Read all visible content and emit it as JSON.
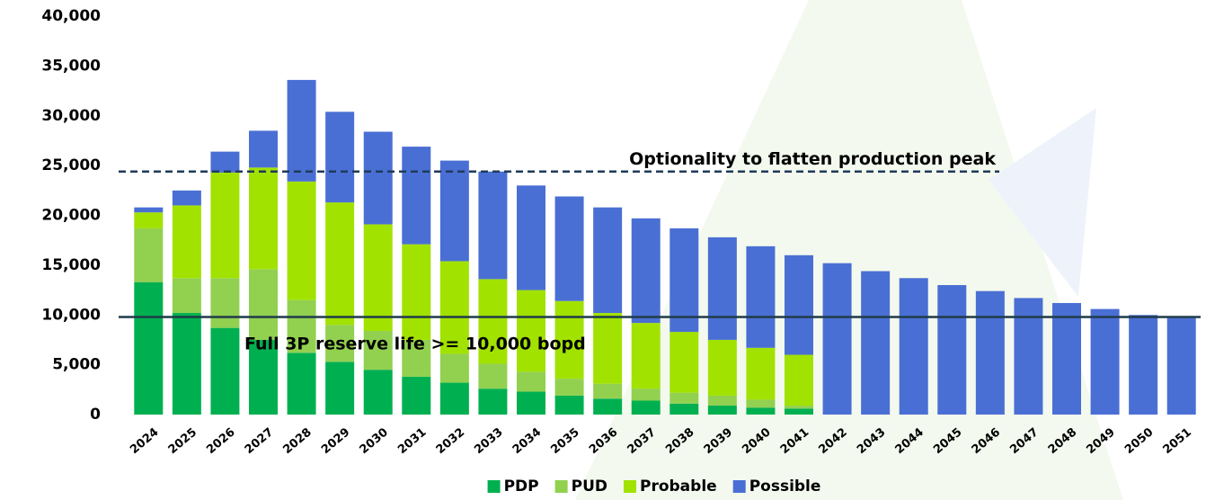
{
  "chart_data": {
    "type": "stacked_bar",
    "categories": [
      "2024",
      "2025",
      "2026",
      "2027",
      "2028",
      "2029",
      "2030",
      "2031",
      "2032",
      "2033",
      "2034",
      "2035",
      "2036",
      "2037",
      "2038",
      "2039",
      "2040",
      "2041",
      "2042",
      "2043",
      "2044",
      "2045",
      "2046",
      "2047",
      "2048",
      "2049",
      "2050",
      "2051"
    ],
    "series": [
      {
        "name": "PDP",
        "color": "#00b050",
        "values": [
          13300,
          10200,
          8700,
          7500,
          6200,
          5300,
          4500,
          3800,
          3200,
          2600,
          2300,
          1900,
          1600,
          1400,
          1100,
          900,
          700,
          600,
          0,
          0,
          0,
          0,
          0,
          0,
          0,
          0,
          0,
          0
        ]
      },
      {
        "name": "PUD",
        "color": "#92d050",
        "values": [
          5400,
          3500,
          5000,
          7100,
          5300,
          3700,
          3900,
          3700,
          2900,
          2500,
          2000,
          1700,
          1500,
          1200,
          1100,
          1000,
          800,
          300,
          0,
          0,
          0,
          0,
          0,
          0,
          0,
          0,
          0,
          0
        ]
      },
      {
        "name": "Probable",
        "color": "#a2e200",
        "values": [
          1600,
          7300,
          10600,
          10200,
          11900,
          12300,
          10700,
          9600,
          9300,
          8500,
          8200,
          7800,
          7100,
          6600,
          6100,
          5600,
          5200,
          5100,
          0,
          0,
          0,
          0,
          0,
          0,
          0,
          0,
          0,
          0
        ]
      },
      {
        "name": "Possible",
        "color": "#4a6fd4",
        "values": [
          500,
          1500,
          2100,
          3700,
          10200,
          9100,
          9300,
          9800,
          10100,
          10800,
          10500,
          10500,
          10600,
          10500,
          10400,
          10300,
          10200,
          10000,
          15200,
          14400,
          13700,
          13000,
          12400,
          11700,
          11200,
          10600,
          10000,
          9700
        ]
      }
    ],
    "ylim": [
      0,
      40000
    ],
    "yticks": [
      {
        "value": 0,
        "label": "0"
      },
      {
        "value": 5000,
        "label": "5,000"
      },
      {
        "value": 10000,
        "label": "10,000"
      },
      {
        "value": 15000,
        "label": "15,000"
      },
      {
        "value": 20000,
        "label": "20,000"
      },
      {
        "value": 25000,
        "label": "25,000"
      },
      {
        "value": 30000,
        "label": "30,000"
      },
      {
        "value": 35000,
        "label": "35,000"
      },
      {
        "value": 40000,
        "label": "40,000"
      }
    ],
    "annotations": [
      {
        "text": "Optionality to flatten production peak",
        "value": 24400,
        "style": "dashed"
      },
      {
        "text": "Full 3P reserve life >= 10,000 bopd",
        "value": 9800,
        "style": "solid"
      }
    ],
    "legend": "bottom"
  }
}
